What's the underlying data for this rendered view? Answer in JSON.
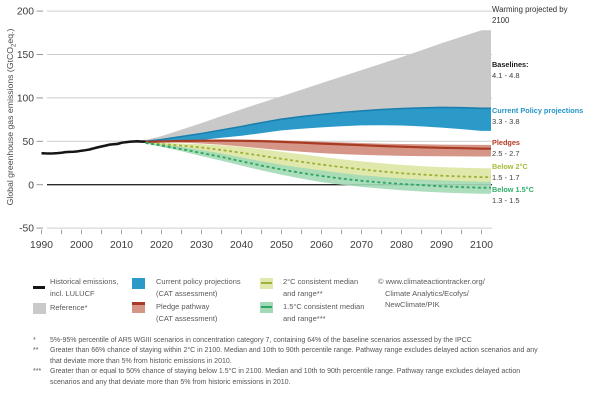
{
  "chart_data": {
    "type": "area",
    "ylabel": {
      "pre": "Global greenhouse gas emissions (GtCO",
      "sub": "2",
      "post": "eq.)"
    },
    "x_ticks": [
      1990,
      2000,
      2010,
      2020,
      2030,
      2040,
      2050,
      2060,
      2070,
      2080,
      2090,
      2100
    ],
    "y_ticks": [
      -50,
      0,
      50,
      100,
      150,
      200
    ],
    "xlim": [
      1990,
      2100
    ],
    "ylim": [
      -50,
      200
    ],
    "grid": true,
    "series": [
      {
        "id": "reference",
        "name": "Reference",
        "type": "band",
        "color": "#c9c9c9",
        "opacity": 1,
        "extend": true,
        "x": [
          2002,
          2006,
          2010,
          2013,
          2016,
          2020,
          2025,
          2030,
          2035,
          2040,
          2045,
          2050,
          2055,
          2060,
          2065,
          2070,
          2075,
          2080,
          2085,
          2090,
          2095,
          2100
        ],
        "top": [
          42.5,
          46.5,
          50,
          51.3,
          51.5,
          56,
          63.5,
          71,
          79,
          87,
          94.5,
          102,
          109.5,
          117,
          124.5,
          132,
          139.5,
          147,
          155,
          163,
          170.5,
          178
        ],
        "bottom": [
          39,
          43.5,
          47,
          48.3,
          48,
          49.5,
          51.5,
          54,
          56.5,
          59,
          61.5,
          64,
          66.5,
          69,
          71.5,
          73.5,
          75.5,
          77,
          78,
          79,
          79.5,
          80
        ]
      },
      {
        "id": "two-c-range",
        "name": "2°C consistent range",
        "type": "band",
        "color": "#e0e9ab",
        "opacity": 1,
        "extend": true,
        "x": [
          2016,
          2020,
          2025,
          2030,
          2035,
          2040,
          2045,
          2050,
          2055,
          2060,
          2065,
          2070,
          2075,
          2080,
          2085,
          2090,
          2095,
          2100
        ],
        "top": [
          48.5,
          48,
          47.5,
          46.8,
          45.5,
          43.5,
          41,
          38,
          35,
          32,
          29.3,
          26.8,
          24.6,
          22.8,
          21.4,
          20.3,
          19.5,
          19
        ],
        "bottom": [
          47.5,
          44,
          39.5,
          34.5,
          29.5,
          24.8,
          20.4,
          16.4,
          12.9,
          10,
          7.7,
          5.9,
          4.6,
          3.7,
          3,
          2.6,
          2.3,
          2
        ]
      },
      {
        "id": "one-five-c-range",
        "name": "1.5°C consistent range",
        "type": "band",
        "color": "#a3d9b6",
        "opacity": 0.9,
        "extend": true,
        "x": [
          2016,
          2020,
          2025,
          2030,
          2035,
          2040,
          2045,
          2050,
          2055,
          2060,
          2065,
          2070,
          2075,
          2080,
          2085,
          2090,
          2095,
          2100
        ],
        "top": [
          48.5,
          46.5,
          43.5,
          40,
          36,
          31.5,
          27,
          23,
          19.5,
          16.5,
          13.5,
          11,
          9,
          7.3,
          6,
          5,
          4.2,
          3.5
        ],
        "bottom": [
          47.5,
          43.5,
          38.5,
          33,
          27.5,
          22,
          16.5,
          11.5,
          7,
          3,
          0,
          -2.5,
          -4.5,
          -6.3,
          -7.8,
          -9,
          -9.9,
          -10.5
        ]
      },
      {
        "id": "current-policy",
        "name": "Current policy projections (CAT assessment)",
        "type": "band",
        "color": "#2b9ac9",
        "opacity": 1,
        "edge_color": "#1a7fae",
        "extend": true,
        "x": [
          2016,
          2020,
          2025,
          2030,
          2035,
          2040,
          2045,
          2050,
          2055,
          2060,
          2065,
          2070,
          2075,
          2080,
          2085,
          2090,
          2095,
          2100
        ],
        "top": [
          50,
          52,
          55.5,
          59,
          63,
          67,
          71.5,
          75.5,
          78.5,
          81,
          83.2,
          85,
          86.5,
          87.7,
          88.5,
          89,
          88.7,
          88
        ],
        "bottom": [
          47.5,
          49,
          50.2,
          51.5,
          54,
          56.5,
          59.5,
          62.5,
          64.5,
          66,
          67.3,
          68.3,
          68.6,
          68.2,
          67.2,
          65.8,
          64,
          62
        ]
      },
      {
        "id": "pledge-range",
        "name": "Pledge pathway range (CAT assessment)",
        "type": "band",
        "color": "#d59687",
        "opacity": 1,
        "extend": true,
        "x": [
          2016,
          2020,
          2025,
          2030,
          2035,
          2040,
          2045,
          2050,
          2055,
          2060,
          2065,
          2070,
          2075,
          2080,
          2085,
          2090,
          2095,
          2100
        ],
        "top": [
          50,
          50.6,
          51.2,
          51.8,
          52,
          52,
          51.6,
          51,
          50.3,
          49.5,
          48.7,
          48,
          47.4,
          46.9,
          46.5,
          46.2,
          46,
          45.8
        ],
        "bottom": [
          48.5,
          49,
          48.5,
          47.5,
          46,
          44,
          41.8,
          39.8,
          38,
          36.4,
          35.2,
          34.3,
          33.7,
          33.2,
          32.9,
          32.7,
          32.6,
          32.5
        ]
      },
      {
        "id": "pledge-median",
        "name": "Pledge pathway median",
        "type": "line",
        "color": "#a83b23",
        "width": 2.2,
        "extend": true,
        "x": [
          2016,
          2020,
          2025,
          2030,
          2035,
          2040,
          2045,
          2050,
          2055,
          2060,
          2065,
          2070,
          2075,
          2080,
          2085,
          2090,
          2095,
          2100
        ],
        "y": [
          49.3,
          49.8,
          50.3,
          50.7,
          50.8,
          50.6,
          50.1,
          49.3,
          48.4,
          47.4,
          46.4,
          45.5,
          44.6,
          43.8,
          43.1,
          42.5,
          42,
          41.5
        ]
      },
      {
        "id": "two-c-median",
        "name": "2°C consistent median",
        "type": "line",
        "color": "#9fb03b",
        "width": 1.8,
        "dash": "3,2.6",
        "extend": true,
        "x": [
          2016,
          2020,
          2025,
          2030,
          2035,
          2040,
          2045,
          2050,
          2055,
          2060,
          2065,
          2070,
          2075,
          2080,
          2085,
          2090,
          2095,
          2100
        ],
        "y": [
          48,
          46.8,
          45,
          42.8,
          40,
          36.8,
          33.3,
          29.8,
          26.4,
          23.2,
          20.3,
          17.6,
          15.3,
          13.3,
          11.7,
          10.4,
          9.4,
          8.8
        ]
      },
      {
        "id": "one-five-c-median",
        "name": "1.5°C consistent median",
        "type": "line",
        "color": "#2ca663",
        "width": 1.8,
        "dash": "3,2.6",
        "extend": true,
        "x": [
          2016,
          2020,
          2025,
          2030,
          2035,
          2040,
          2045,
          2050,
          2055,
          2060,
          2065,
          2070,
          2075,
          2080,
          2085,
          2090,
          2095,
          2100
        ],
        "y": [
          48,
          45,
          41,
          36.5,
          32,
          27,
          22,
          17.5,
          13.5,
          10,
          7,
          4.5,
          2.5,
          0.8,
          -0.5,
          -1.8,
          -2.8,
          -3.5
        ]
      },
      {
        "id": "historical",
        "name": "Historical emissions, incl. LULUCF",
        "type": "line",
        "color": "#151515",
        "width": 2.5,
        "extend": false,
        "x": [
          1990,
          1991,
          1992,
          1993,
          1994,
          1995,
          1996,
          1997,
          1998,
          1999,
          2000,
          2001,
          2002,
          2003,
          2004,
          2005,
          2006,
          2007,
          2008,
          2009,
          2010,
          2011,
          2012,
          2013,
          2014,
          2015,
          2016
        ],
        "y": [
          36.3,
          36.1,
          35.9,
          36.1,
          36.4,
          36.9,
          37.5,
          37.8,
          37.9,
          38.4,
          39.2,
          39.7,
          40.5,
          41.8,
          43,
          44,
          45,
          46.2,
          46.7,
          46.9,
          48.3,
          49,
          49.4,
          49.8,
          50,
          49.6,
          49.8
        ]
      }
    ]
  },
  "right_panel": {
    "warming": "Warming projected by 2100",
    "items": [
      {
        "id": "baselines",
        "label": "Baselines:",
        "value": "4.1 - 4.8",
        "color": "#1a1a1a"
      },
      {
        "id": "current-policy",
        "label": "Current Policy projections",
        "value": "3.3 - 3.8",
        "color": "#2494c8"
      },
      {
        "id": "pledges",
        "label": "Pledges",
        "value": "2.5 - 2.7",
        "color": "#b43a25"
      },
      {
        "id": "below-2c",
        "label": "Below 2°C",
        "value": "1.5 - 1.7",
        "color": "#a9ba39"
      },
      {
        "id": "below-1-5c",
        "label": "Below 1.5°C",
        "value": "1.3 - 1.5",
        "color": "#2fae68"
      }
    ]
  },
  "legend": {
    "items": [
      {
        "id": "historical",
        "line1": "Historical emissions,",
        "line2": "incl. LULUCF"
      },
      {
        "id": "reference",
        "line1": "Reference*",
        "line2": ""
      },
      {
        "id": "current-policy",
        "line1": "Current policy projections",
        "line2": "(CAT assessment)"
      },
      {
        "id": "pledge",
        "line1": "Pledge pathway",
        "line2": "(CAT assessment)"
      },
      {
        "id": "two-c",
        "line1": "2°C consistent median",
        "line2": "and range**"
      },
      {
        "id": "one-five-c",
        "line1": "1.5°C consistent median",
        "line2": "and range***"
      }
    ],
    "copyright": {
      "line1": "© www.climateactiontracker.org/",
      "line2": "Climate Analytics/Ecofys/",
      "line3": "NewClimate/PIK"
    }
  },
  "footnotes": [
    {
      "mark": "*",
      "text": "5%-95% percentile of AR5 WGIII scenarios in concentration category 7, containing 64% of the baseline scenarios assessed by the IPCC"
    },
    {
      "mark": "**",
      "text": "Greater than 66% chance of staying within 2°C in 2100. Median and 10th to 90th percentile range. Pathway range excludes delayed action scenarios and any that deviate more than 5% from historic emissions in 2010."
    },
    {
      "mark": "***",
      "text": "Greater than or equal to 50% chance of staying below 1.5°C in 2100. Median and 10th to 90th percentile range. Pathway range excludes delayed action scenarios and any that deviate more than 5% from historic emissions in 2010."
    }
  ],
  "colors": {
    "reference_band": "#c9c9c9",
    "current_policy_band": "#2b9ac9",
    "current_policy_edge": "#1a7fae",
    "pledge_band": "#d59687",
    "pledge_line": "#a83b23",
    "two_c_band": "#e0e9ab",
    "two_c_line": "#9fb03b",
    "one_five_c_band": "#a3d9b6",
    "one_five_c_line": "#2ca663",
    "historical_line": "#151515",
    "gridline": "#cdcdcd",
    "zero_line": "#2b2b2b"
  }
}
